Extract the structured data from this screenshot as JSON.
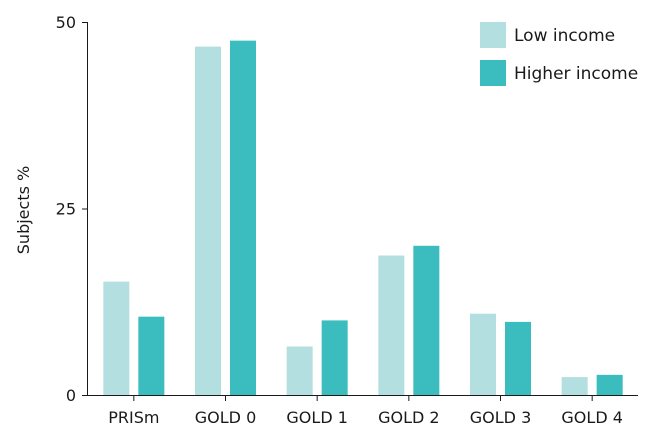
{
  "chart_data": {
    "type": "bar",
    "categories": [
      "PRISm",
      "GOLD 0",
      "GOLD 1",
      "GOLD 2",
      "GOLD 3",
      "GOLD 4"
    ],
    "series": [
      {
        "name": "Low income",
        "color": "#b3dfe0",
        "values": [
          15.2,
          46.7,
          6.5,
          18.7,
          10.9,
          2.4
        ]
      },
      {
        "name": "Higher income",
        "color": "#3bbdbf",
        "values": [
          10.5,
          47.5,
          10.0,
          20.0,
          9.8,
          2.7
        ]
      }
    ],
    "title": "",
    "xlabel": "",
    "ylabel": "Subjects %",
    "ylim": [
      0,
      50
    ],
    "yticks": [
      0,
      25,
      50
    ],
    "grid": false,
    "legend_position": "top-right"
  }
}
